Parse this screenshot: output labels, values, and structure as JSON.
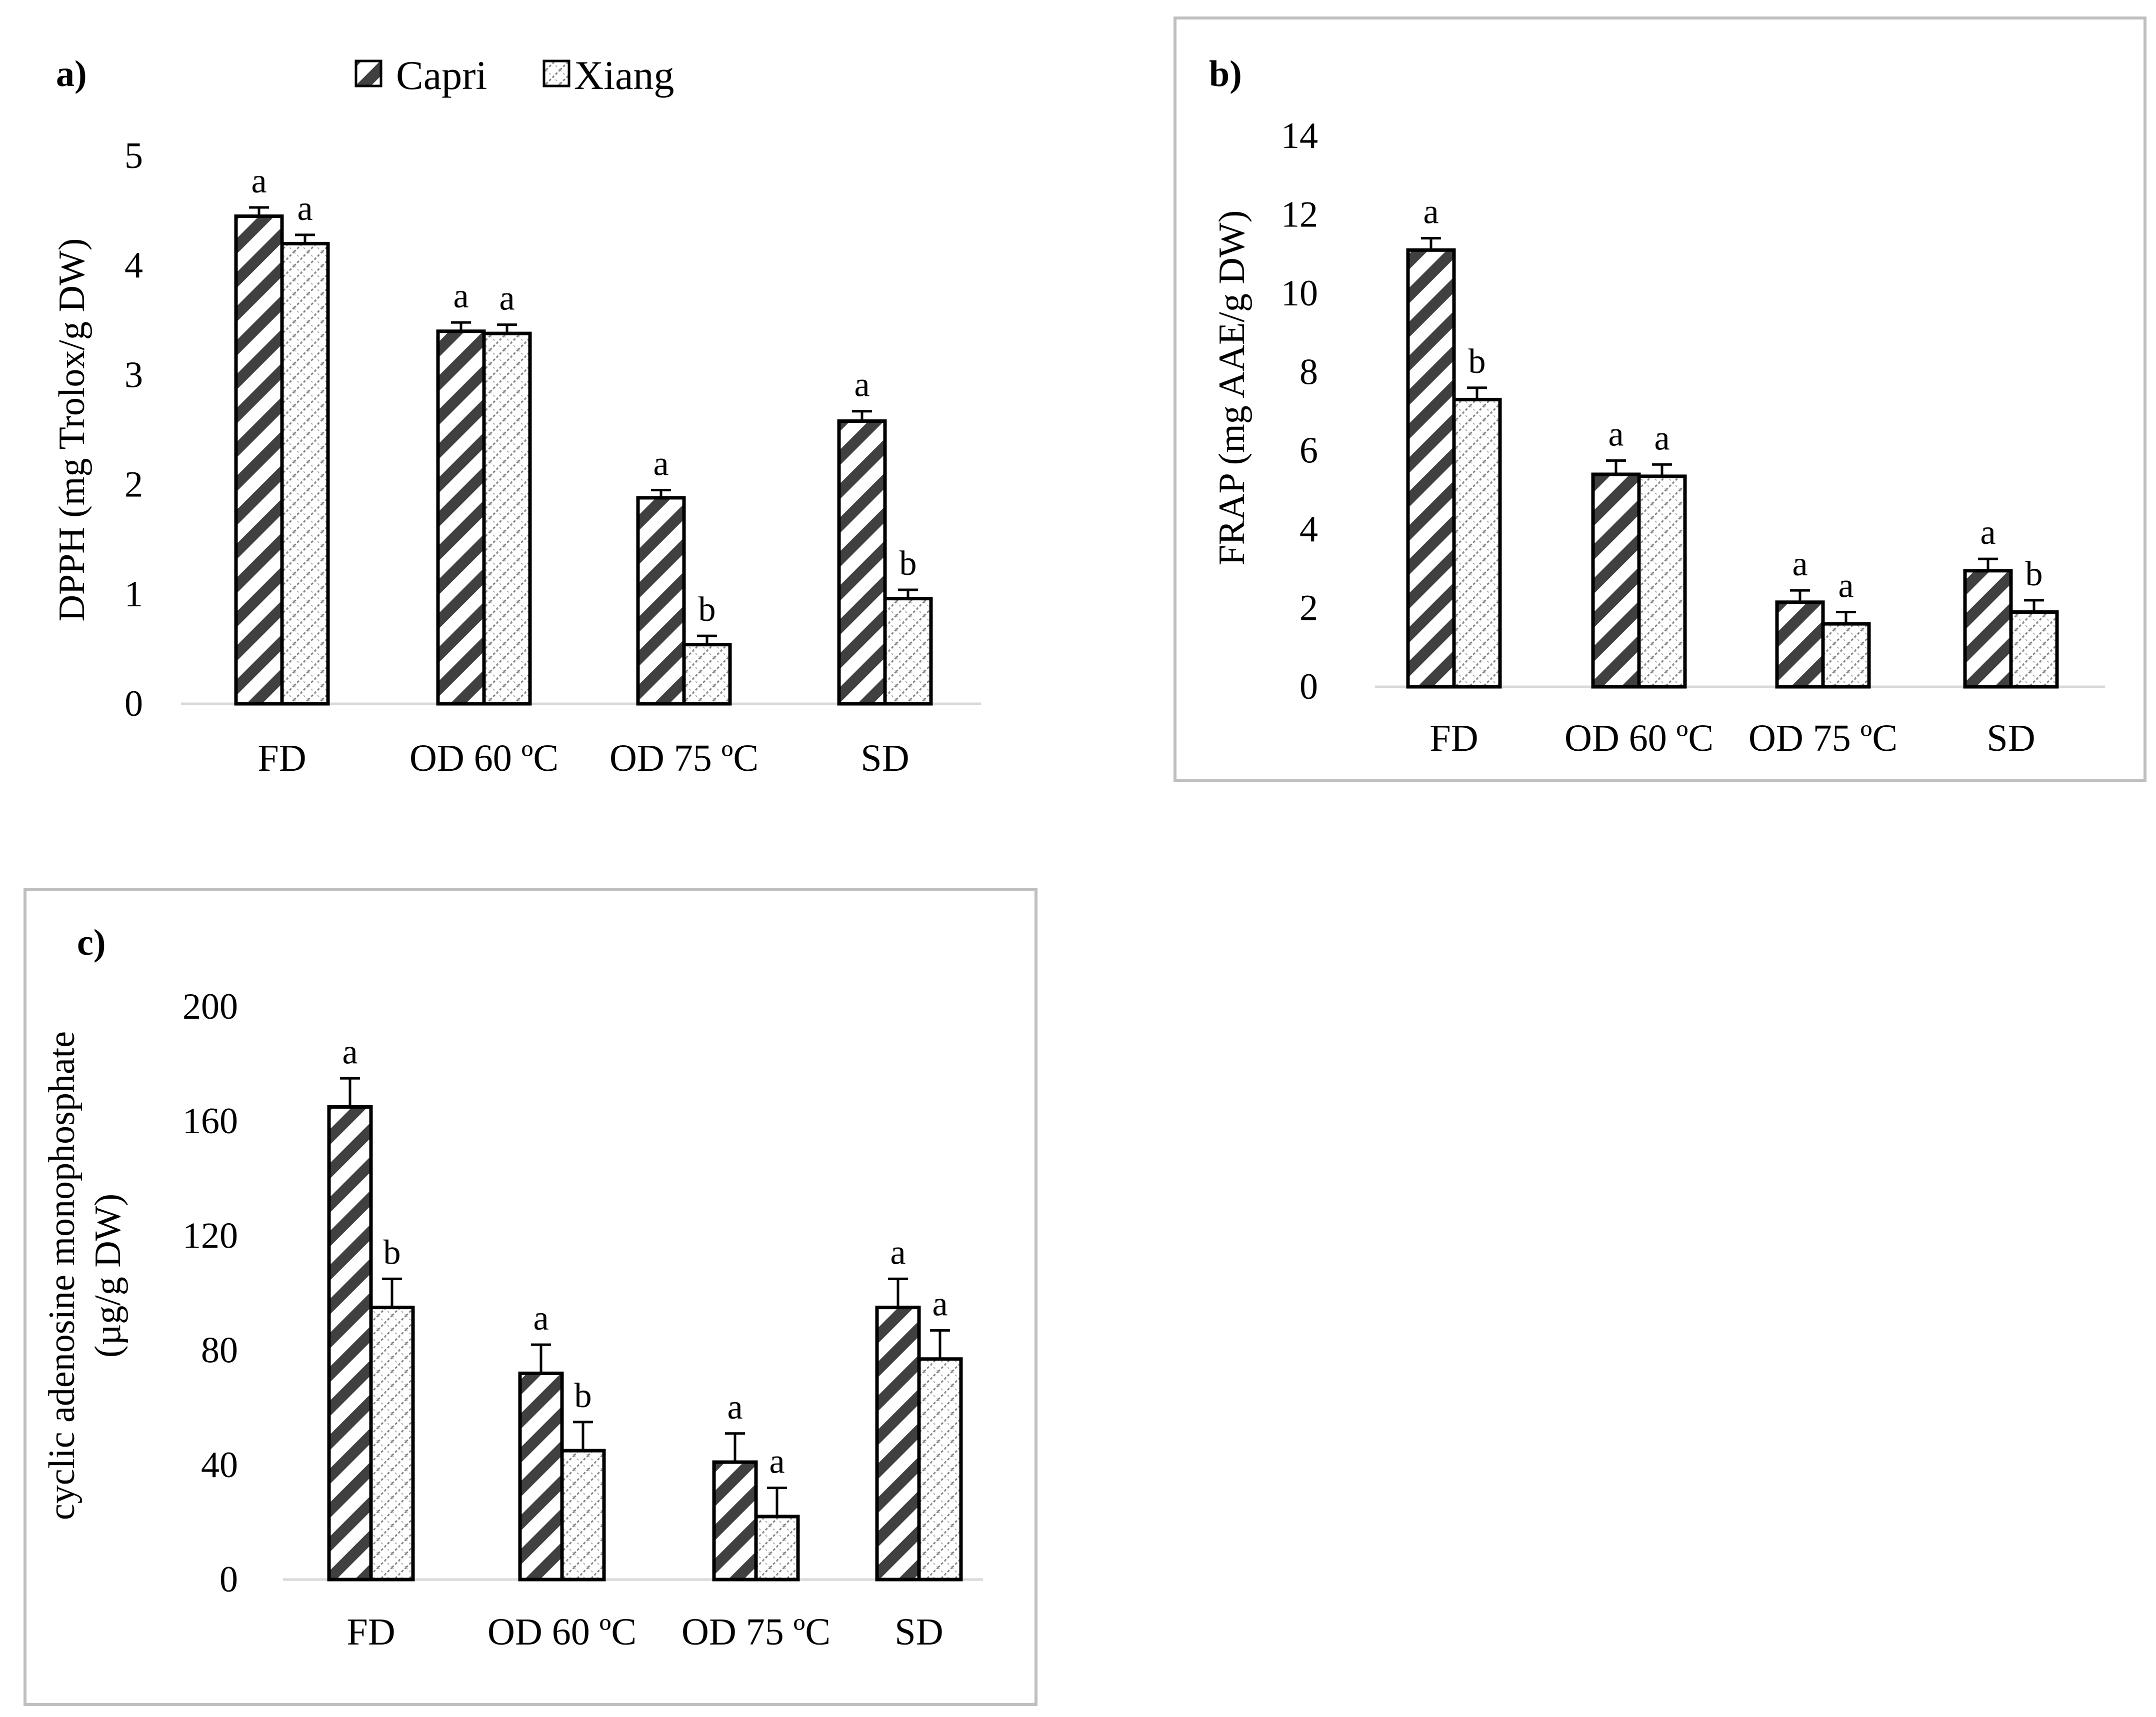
{
  "legend": {
    "capri": "Capri",
    "xiang": "Xiang"
  },
  "colors": {
    "frame": "#bfbfbf",
    "axis": "#d9d9d9",
    "bar_stroke": "#000000",
    "capri_hatch": "#404040",
    "xiang_hatch": "#7f7f7f"
  },
  "chart_data": [
    {
      "id": "a",
      "panel_label": "a)",
      "type": "bar",
      "title": "",
      "xlabel": "",
      "ylabel": "DPPH (mg Trolox/g DW)",
      "ylim": [
        0,
        5
      ],
      "yticks": [
        0,
        1,
        2,
        3,
        4,
        5
      ],
      "ytick_labels": [
        "0",
        "1",
        "2",
        "3",
        "4",
        "5"
      ],
      "categories": [
        "FD",
        "OD 60 ºC",
        "OD 75 ºC",
        "SD"
      ],
      "series": [
        {
          "name": "Capri",
          "values": [
            4.45,
            3.4,
            1.88,
            2.58
          ],
          "errors": [
            0.08,
            0.08,
            0.07,
            0.09
          ],
          "letters": [
            "a",
            "a",
            "a",
            "a"
          ]
        },
        {
          "name": "Xiang",
          "values": [
            4.2,
            3.38,
            0.54,
            0.96
          ],
          "errors": [
            0.08,
            0.08,
            0.08,
            0.08
          ],
          "letters": [
            "a",
            "a",
            "b",
            "b"
          ]
        }
      ]
    },
    {
      "id": "b",
      "panel_label": "b)",
      "type": "bar",
      "title": "",
      "xlabel": "",
      "ylabel": "FRAP (mg AAE/g DW)",
      "ylim": [
        0,
        14
      ],
      "yticks": [
        0,
        2,
        4,
        6,
        8,
        10,
        12,
        14
      ],
      "ytick_labels": [
        "0",
        "2",
        "4",
        "6",
        "8",
        "10",
        "12",
        "14"
      ],
      "categories": [
        "FD",
        "OD 60 ºC",
        "OD 75 ºC",
        "SD"
      ],
      "series": [
        {
          "name": "Capri",
          "values": [
            11.1,
            5.4,
            2.15,
            2.95
          ],
          "errors": [
            0.3,
            0.35,
            0.3,
            0.3
          ],
          "letters": [
            "a",
            "a",
            "a",
            "a"
          ]
        },
        {
          "name": "Xiang",
          "values": [
            7.3,
            5.35,
            1.6,
            1.9
          ],
          "errors": [
            0.3,
            0.3,
            0.3,
            0.3
          ],
          "letters": [
            "b",
            "a",
            "a",
            "b"
          ]
        }
      ]
    },
    {
      "id": "c",
      "panel_label": "c)",
      "type": "bar",
      "title": "",
      "xlabel": "",
      "ylabel": "cyclic adenosine monophosphate",
      "ylabel_line2": "(µg/g DW)",
      "ylim": [
        0,
        200
      ],
      "yticks": [
        0,
        40,
        80,
        120,
        160,
        200
      ],
      "ytick_labels": [
        "0",
        "40",
        "80",
        "120",
        "160",
        "200"
      ],
      "categories": [
        "FD",
        "OD 60 ºC",
        "OD 75 ºC",
        "SD"
      ],
      "series": [
        {
          "name": "Capri",
          "values": [
            165,
            72,
            41,
            95
          ],
          "errors": [
            10,
            10,
            10,
            10
          ],
          "letters": [
            "a",
            "a",
            "a",
            "a"
          ]
        },
        {
          "name": "Xiang",
          "values": [
            95,
            45,
            22,
            77
          ],
          "errors": [
            10,
            10,
            10,
            10
          ],
          "letters": [
            "b",
            "b",
            "a",
            "a"
          ]
        }
      ]
    }
  ]
}
